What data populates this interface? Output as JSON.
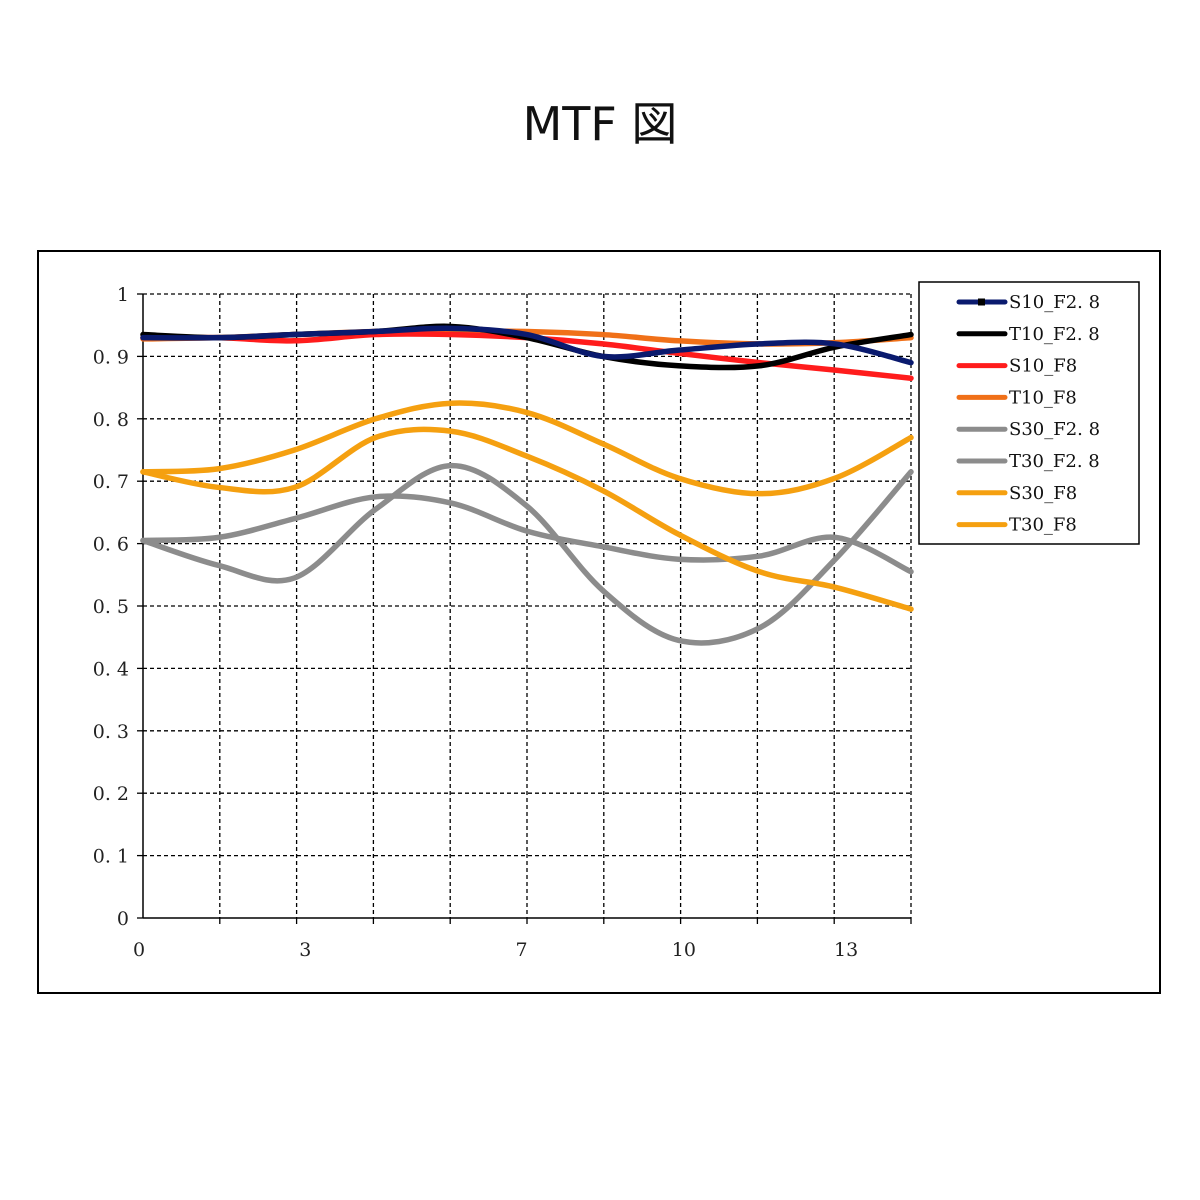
{
  "title": "MTF 図",
  "chart_data": {
    "type": "line",
    "title": "MTF 図",
    "xlabel": "",
    "ylabel": "",
    "xlim": [
      0,
      14.2
    ],
    "ylim": [
      0,
      1
    ],
    "x_ticks": [
      0,
      3,
      7,
      10,
      13
    ],
    "y_ticks": [
      0,
      0.1,
      0.2,
      0.3,
      0.4,
      0.5,
      0.6,
      0.7,
      0.8,
      0.9,
      1
    ],
    "y_tick_labels": [
      "0",
      "0. 1",
      "0. 2",
      "0. 3",
      "0. 4",
      "0. 5",
      "0. 6",
      "0. 7",
      "0. 8",
      "0. 9",
      "1"
    ],
    "x_gridlines": [
      1.42,
      2.84,
      4.26,
      5.68,
      7.1,
      8.52,
      9.94,
      11.36,
      12.78,
      14.2
    ],
    "grid": true,
    "legend_position": "right",
    "series": [
      {
        "name": "S10_F2. 8",
        "color": "#0a1a6e",
        "marker": "square",
        "x": [
          0,
          1.4,
          2.8,
          4.3,
          5.7,
          7.1,
          8.5,
          9.9,
          11.4,
          12.8,
          14.2
        ],
        "y": [
          0.93,
          0.93,
          0.935,
          0.94,
          0.945,
          0.935,
          0.9,
          0.91,
          0.92,
          0.92,
          0.89
        ]
      },
      {
        "name": "T10_F2. 8",
        "color": "#000000",
        "x": [
          0,
          1.4,
          2.8,
          4.3,
          5.7,
          7.1,
          8.5,
          9.9,
          11.4,
          12.8,
          14.2
        ],
        "y": [
          0.935,
          0.93,
          0.935,
          0.94,
          0.948,
          0.93,
          0.9,
          0.885,
          0.885,
          0.915,
          0.935
        ]
      },
      {
        "name": "S10_F8",
        "color": "#ff1c1c",
        "x": [
          0,
          1.4,
          2.8,
          4.3,
          5.7,
          7.1,
          8.5,
          9.9,
          11.4,
          12.8,
          14.2
        ],
        "y": [
          0.93,
          0.93,
          0.925,
          0.935,
          0.935,
          0.93,
          0.92,
          0.905,
          0.89,
          0.878,
          0.865
        ]
      },
      {
        "name": "T10_F8",
        "color": "#f07018",
        "x": [
          0,
          1.4,
          2.8,
          4.3,
          5.7,
          7.1,
          8.5,
          9.9,
          11.4,
          12.8,
          14.2
        ],
        "y": [
          0.928,
          0.93,
          0.935,
          0.94,
          0.94,
          0.94,
          0.935,
          0.925,
          0.92,
          0.922,
          0.93
        ]
      },
      {
        "name": "S30_F2. 8",
        "color": "#8c8c8c",
        "x": [
          0,
          1.4,
          2.8,
          4.3,
          5.7,
          7.1,
          8.5,
          9.9,
          11.4,
          12.8,
          14.2
        ],
        "y": [
          0.605,
          0.61,
          0.64,
          0.675,
          0.665,
          0.62,
          0.595,
          0.575,
          0.58,
          0.61,
          0.555
        ]
      },
      {
        "name": "T30_F2. 8",
        "color": "#8c8c8c",
        "x": [
          0,
          1.4,
          2.8,
          4.3,
          5.7,
          7.1,
          8.5,
          9.9,
          11.4,
          12.8,
          14.2
        ],
        "y": [
          0.605,
          0.565,
          0.545,
          0.655,
          0.725,
          0.66,
          0.525,
          0.445,
          0.465,
          0.575,
          0.715
        ]
      },
      {
        "name": "S30_F8",
        "color": "#f5a010",
        "x": [
          0,
          1.4,
          2.8,
          4.3,
          5.7,
          7.1,
          8.5,
          9.9,
          11.4,
          12.8,
          14.2
        ],
        "y": [
          0.715,
          0.72,
          0.75,
          0.8,
          0.825,
          0.81,
          0.76,
          0.705,
          0.68,
          0.705,
          0.77
        ]
      },
      {
        "name": "T30_F8",
        "color": "#f5a010",
        "x": [
          0,
          1.4,
          2.8,
          4.3,
          5.7,
          7.1,
          8.5,
          9.9,
          11.4,
          12.8,
          14.2
        ],
        "y": [
          0.715,
          0.69,
          0.69,
          0.77,
          0.78,
          0.74,
          0.685,
          0.615,
          0.555,
          0.53,
          0.495
        ]
      }
    ]
  }
}
